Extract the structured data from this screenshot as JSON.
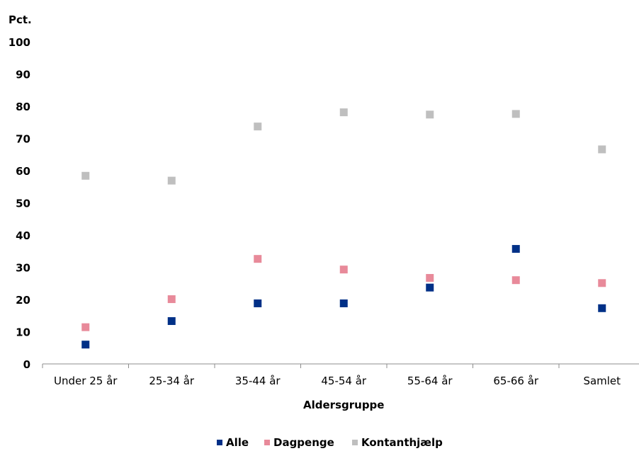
{
  "chart_data": {
    "type": "scatter",
    "ylabel": "Pct.",
    "xlabel": "Aldersgruppe",
    "ylim": [
      0,
      100
    ],
    "yticks": [
      "0",
      "10",
      "20",
      "30",
      "40",
      "50",
      "60",
      "70",
      "80",
      "90",
      "100"
    ],
    "categories": [
      "Under 25 år",
      "25-34 år",
      "35-44 år",
      "45-54 år",
      "55-64 år",
      "65-66 år",
      "Samlet"
    ],
    "grid": false,
    "legend_position": "bottom",
    "series": [
      {
        "name": "Alle",
        "color": "#003087",
        "values": [
          6.0,
          13.3,
          18.8,
          18.8,
          23.7,
          35.7,
          17.3
        ]
      },
      {
        "name": "Dagpenge",
        "color": "#e88a9a",
        "values": [
          11.4,
          20.1,
          32.6,
          29.3,
          26.7,
          26.0,
          25.1
        ]
      },
      {
        "name": "Kontanthjælp",
        "color": "#bfbfbf",
        "values": [
          58.4,
          56.9,
          73.7,
          78.1,
          77.4,
          77.6,
          66.6
        ]
      }
    ]
  }
}
